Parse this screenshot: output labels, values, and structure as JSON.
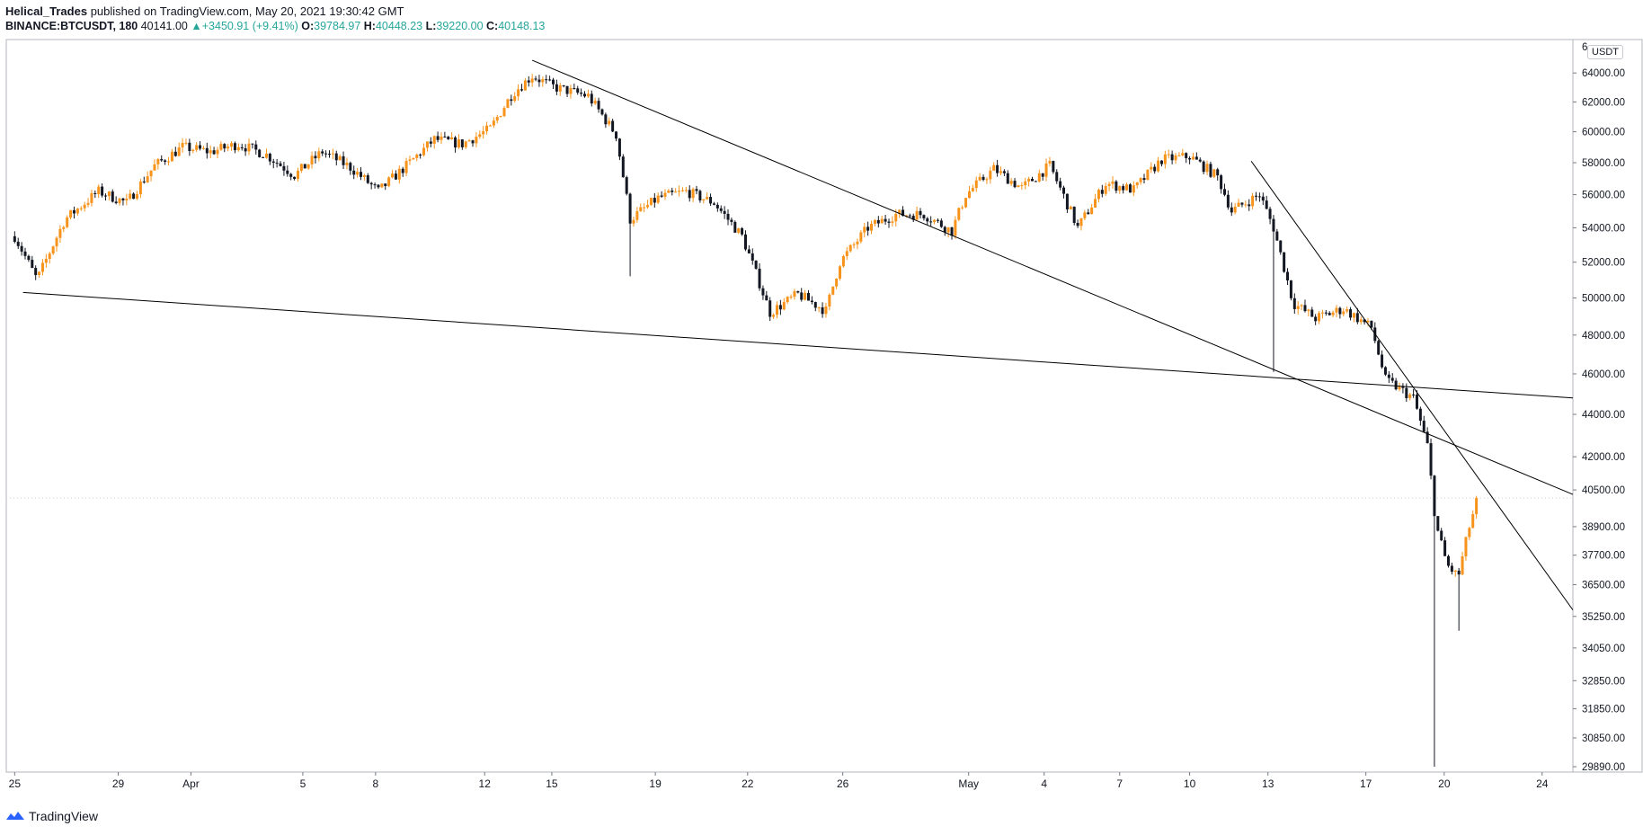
{
  "header": {
    "author": "Helical_Trades",
    "published_text": "published on TradingView.com, May 20, 2021 19:30:42 GMT",
    "symbol": "BINANCE:BTCUSDT, 180",
    "last": "40141.00",
    "change": "+3450.91 (+9.41%)",
    "o_label": "O:",
    "o_value": "39784.97",
    "h_label": "H:",
    "h_value": "40448.23",
    "l_label": "L:",
    "l_value": "39220.00",
    "c_label": "C:",
    "c_value": "40148.13"
  },
  "footer": {
    "brand": "TradingView"
  },
  "colors": {
    "up": "#f7931a",
    "down": "#131722",
    "trend": "#000000",
    "accent": "#26a69a"
  },
  "chart_data": {
    "type": "candlestick",
    "unit": "USDT",
    "scale": "logarithmic",
    "ylim": [
      29890,
      66000
    ],
    "x_day_range": [
      -0.3,
      55.7
    ],
    "y_ticks": [
      64000,
      62000,
      60000,
      58000,
      56000,
      54000,
      52000,
      50000,
      48000,
      46000,
      44000,
      42000,
      40500,
      38900,
      37700,
      36500,
      35250,
      34050,
      32850,
      31850,
      30850,
      29890
    ],
    "top_partial_tick": "6",
    "x_ticks": [
      {
        "label": "25",
        "day": 0
      },
      {
        "label": "29",
        "day": 3.7
      },
      {
        "label": "Apr",
        "day": 6.3
      },
      {
        "label": "5",
        "day": 10.3
      },
      {
        "label": "8",
        "day": 12.9
      },
      {
        "label": "12",
        "day": 16.8
      },
      {
        "label": "15",
        "day": 19.2
      },
      {
        "label": "19",
        "day": 22.9
      },
      {
        "label": "22",
        "day": 26.2
      },
      {
        "label": "26",
        "day": 29.6
      },
      {
        "label": "May",
        "day": 34.1
      },
      {
        "label": "4",
        "day": 36.8
      },
      {
        "label": "7",
        "day": 39.5
      },
      {
        "label": "10",
        "day": 42.0
      },
      {
        "label": "13",
        "day": 44.8
      },
      {
        "label": "17",
        "day": 48.3
      },
      {
        "label": "20",
        "day": 51.1
      },
      {
        "label": "24",
        "day": 54.6
      }
    ],
    "price_path": [
      [
        0,
        53500
      ],
      [
        0.8,
        51000
      ],
      [
        1.8,
        54500
      ],
      [
        3,
        56200
      ],
      [
        4,
        55500
      ],
      [
        5,
        57800
      ],
      [
        6,
        59000
      ],
      [
        7,
        58700
      ],
      [
        8,
        59200
      ],
      [
        9,
        58500
      ],
      [
        10,
        57200
      ],
      [
        11,
        58700
      ],
      [
        12,
        57700
      ],
      [
        13,
        56200
      ],
      [
        14,
        57800
      ],
      [
        15,
        59500
      ],
      [
        16,
        59200
      ],
      [
        17,
        60200
      ],
      [
        17.8,
        62600
      ],
      [
        18.5,
        63800
      ],
      [
        19.3,
        63000
      ],
      [
        20.5,
        62400
      ],
      [
        21.5,
        59800
      ],
      [
        22.0,
        54500
      ],
      [
        23,
        55800
      ],
      [
        24,
        56200
      ],
      [
        25,
        55500
      ],
      [
        26.0,
        53500
      ],
      [
        27,
        49200
      ],
      [
        28,
        50200
      ],
      [
        29.0,
        49300
      ],
      [
        29.5,
        52000
      ],
      [
        30.5,
        54000
      ],
      [
        31.5,
        54800
      ],
      [
        32.5,
        54800
      ],
      [
        33.5,
        53800
      ],
      [
        34,
        56000
      ],
      [
        35,
        57600
      ],
      [
        36,
        56400
      ],
      [
        37,
        57800
      ],
      [
        38,
        54000
      ],
      [
        39,
        56700
      ],
      [
        40,
        56300
      ],
      [
        41,
        58200
      ],
      [
        42,
        58400
      ],
      [
        43,
        57100
      ],
      [
        43.5,
        55000
      ],
      [
        44.5,
        56000
      ],
      [
        45,
        54000
      ],
      [
        45.7,
        49700
      ],
      [
        46.5,
        48900
      ],
      [
        47.5,
        49400
      ],
      [
        48.5,
        48400
      ],
      [
        49.0,
        45700
      ],
      [
        50,
        44800
      ],
      [
        50.5,
        42500
      ],
      [
        50.8,
        39000
      ],
      [
        51.2,
        37300
      ],
      [
        51.6,
        36800
      ],
      [
        52.0,
        38900
      ],
      [
        52.3,
        40141
      ]
    ],
    "wicks": [
      {
        "day": 22.0,
        "low": 51200
      },
      {
        "day": 45.0,
        "low": 46100
      },
      {
        "day": 50.8,
        "low": 29890
      },
      {
        "day": 51.6,
        "low": 34700
      }
    ],
    "trendlines": [
      {
        "name": "support-line",
        "from": [
          0.3,
          50300
        ],
        "to": [
          55.7,
          44800
        ]
      },
      {
        "name": "upper-trendline",
        "from": [
          18.5,
          64900
        ],
        "to": [
          55.7,
          40300
        ]
      },
      {
        "name": "lower-trendline",
        "from": [
          44.2,
          58100
        ],
        "to": [
          55.7,
          35500
        ]
      }
    ],
    "last_price_line": 40141
  }
}
